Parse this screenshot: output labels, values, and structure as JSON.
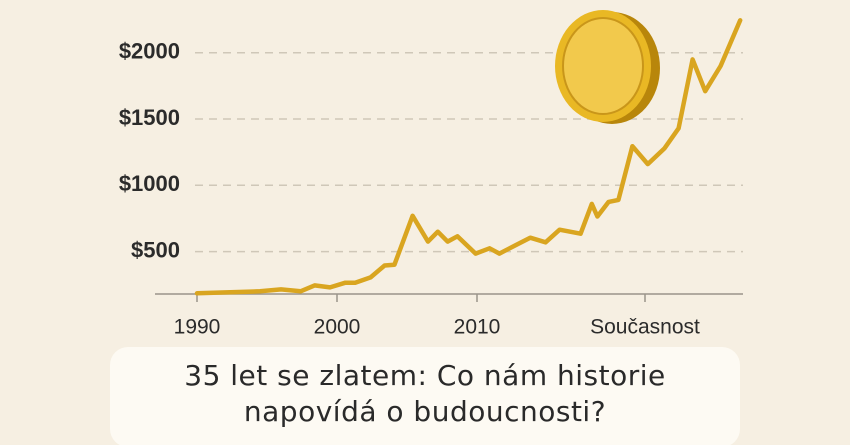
{
  "chart_data": {
    "type": "line",
    "title": [
      "35 let se zlatem: Co nám historie",
      "napovídá o budoucnosti?"
    ],
    "x": [
      1990,
      1994.5,
      1996,
      1997.4,
      1998.4,
      1999.5,
      2000.6,
      2001.3,
      2002.4,
      2003.4,
      2004.1,
      2005.4,
      2006.5,
      2007.2,
      2007.9,
      2008.6,
      2009.9,
      2010.9,
      2011.6,
      2012.7,
      2013.8,
      2014.9,
      2015.9,
      2017.4,
      2018.2,
      2018.6,
      2019.4,
      2020.1,
      2021.1,
      2022.2,
      2023.4,
      2024.4,
      2025.4,
      2026.3,
      2027.4,
      2028.8
    ],
    "values": [
      185,
      200,
      215,
      200,
      245,
      230,
      265,
      265,
      305,
      395,
      400,
      770,
      575,
      650,
      575,
      615,
      485,
      525,
      485,
      545,
      605,
      570,
      665,
      635,
      860,
      765,
      875,
      890,
      1295,
      1160,
      1280,
      1430,
      1950,
      1710,
      1900,
      2245
    ],
    "color": "#d9a520",
    "xlim": [
      1987,
      2029
    ],
    "xticks": [
      1990,
      2000,
      2010,
      {
        "value": 2022,
        "label": "Současnost"
      }
    ],
    "ylim": [
      180,
      2300
    ],
    "yticks": [
      {
        "value": 500,
        "label": "$500"
      },
      {
        "value": 1000,
        "label": "$1000"
      },
      {
        "value": 1500,
        "label": "$1500"
      },
      {
        "value": 2000,
        "label": "$2000"
      }
    ],
    "grid": true
  }
}
